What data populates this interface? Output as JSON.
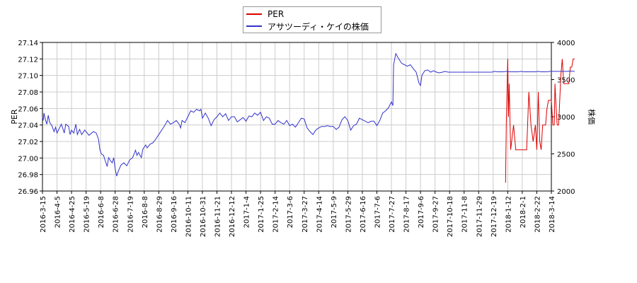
{
  "chart_data": {
    "type": "line",
    "xlabel": "",
    "ylabel": "PER",
    "y2label": "株価",
    "legend_position": "top",
    "grid": true,
    "ylim": [
      26.96,
      27.14
    ],
    "y2lim": [
      2000,
      4000
    ],
    "yticks": [
      "26.96",
      "26.98",
      "27.00",
      "27.02",
      "27.04",
      "27.06",
      "27.08",
      "27.10",
      "27.12",
      "27.14"
    ],
    "y2ticks": [
      "2000",
      "2500",
      "3000",
      "3500",
      "4000"
    ],
    "xticks": [
      "2016-3-15",
      "2016-4-5",
      "2016-4-25",
      "2016-5-19",
      "2016-6-8",
      "2016-6-28",
      "2016-7-19",
      "2016-8-8",
      "2016-8-29",
      "2016-9-16",
      "2016-10-11",
      "2016-10-31",
      "2016-11-21",
      "2016-12-12",
      "2017-1-4",
      "2017-1-25",
      "2017-2-14",
      "2017-3-6",
      "2017-3-27",
      "2017-4-14",
      "2017-5-9",
      "2017-5-29",
      "2017-6-16",
      "2017-7-6",
      "2017-7-27",
      "2017-8-17",
      "2017-9-6",
      "2017-9-27",
      "2017-10-18",
      "2017-11-8",
      "2017-11-29",
      "2017-12-19",
      "2018-1-12",
      "2018-2-1",
      "2018-2-22",
      "2018-3-14"
    ],
    "series": [
      {
        "name": "PER",
        "color": "#dd0000",
        "axis": "left",
        "points": [
          [
            31.85,
            26.97
          ],
          [
            31.9,
            27.04
          ],
          [
            32.0,
            27.12
          ],
          [
            32.05,
            27.05
          ],
          [
            32.1,
            27.09
          ],
          [
            32.2,
            27.01
          ],
          [
            32.4,
            27.04
          ],
          [
            32.55,
            27.01
          ],
          [
            32.7,
            27.01
          ],
          [
            33.0,
            27.01
          ],
          [
            33.3,
            27.01
          ],
          [
            33.45,
            27.08
          ],
          [
            33.6,
            27.04
          ],
          [
            33.75,
            27.02
          ],
          [
            33.9,
            27.04
          ],
          [
            34.0,
            27.01
          ],
          [
            34.1,
            27.08
          ],
          [
            34.2,
            27.02
          ],
          [
            34.3,
            27.01
          ],
          [
            34.4,
            27.04
          ],
          [
            34.6,
            27.04
          ],
          [
            34.7,
            27.06
          ],
          [
            34.8,
            27.07
          ],
          [
            35.0,
            27.07
          ],
          [
            35.1,
            27.04
          ],
          [
            35.2,
            27.04
          ],
          [
            35.25,
            27.09
          ],
          [
            35.3,
            27.07
          ],
          [
            35.4,
            27.04
          ],
          [
            35.5,
            27.04
          ],
          [
            35.65,
            27.1
          ],
          [
            35.75,
            27.12
          ],
          [
            35.85,
            27.09
          ],
          [
            35.95,
            27.09
          ],
          [
            36.2,
            27.09
          ],
          [
            36.3,
            27.11
          ],
          [
            36.4,
            27.11
          ],
          [
            36.5,
            27.12
          ],
          [
            36.6,
            27.12
          ]
        ]
      },
      {
        "name": "アサツーディ・ケイの株価",
        "color": "#3333cc",
        "axis": "right",
        "points": [
          [
            0,
            3000
          ],
          [
            0.05,
            2950
          ],
          [
            0.1,
            3050
          ],
          [
            0.2,
            2960
          ],
          [
            0.3,
            2900
          ],
          [
            0.4,
            3020
          ],
          [
            0.5,
            2920
          ],
          [
            0.65,
            2880
          ],
          [
            0.7,
            2850
          ],
          [
            0.8,
            2800
          ],
          [
            0.9,
            2860
          ],
          [
            1.0,
            2780
          ],
          [
            1.1,
            2820
          ],
          [
            1.3,
            2900
          ],
          [
            1.4,
            2840
          ],
          [
            1.5,
            2780
          ],
          [
            1.6,
            2900
          ],
          [
            1.8,
            2870
          ],
          [
            1.9,
            2760
          ],
          [
            2.0,
            2820
          ],
          [
            2.15,
            2780
          ],
          [
            2.3,
            2900
          ],
          [
            2.4,
            2760
          ],
          [
            2.55,
            2830
          ],
          [
            2.7,
            2760
          ],
          [
            2.9,
            2820
          ],
          [
            3.0,
            2800
          ],
          [
            3.2,
            2750
          ],
          [
            3.5,
            2800
          ],
          [
            3.7,
            2780
          ],
          [
            3.85,
            2700
          ],
          [
            3.95,
            2560
          ],
          [
            4.05,
            2500
          ],
          [
            4.2,
            2480
          ],
          [
            4.3,
            2420
          ],
          [
            4.45,
            2330
          ],
          [
            4.55,
            2450
          ],
          [
            4.7,
            2400
          ],
          [
            4.8,
            2380
          ],
          [
            4.9,
            2450
          ],
          [
            5.0,
            2300
          ],
          [
            5.1,
            2200
          ],
          [
            5.2,
            2260
          ],
          [
            5.4,
            2350
          ],
          [
            5.6,
            2380
          ],
          [
            5.8,
            2340
          ],
          [
            6.0,
            2420
          ],
          [
            6.2,
            2450
          ],
          [
            6.4,
            2550
          ],
          [
            6.5,
            2480
          ],
          [
            6.6,
            2520
          ],
          [
            6.8,
            2450
          ],
          [
            6.9,
            2560
          ],
          [
            7.1,
            2620
          ],
          [
            7.2,
            2580
          ],
          [
            7.4,
            2630
          ],
          [
            7.6,
            2650
          ],
          [
            7.8,
            2700
          ],
          [
            8.0,
            2760
          ],
          [
            8.2,
            2820
          ],
          [
            8.4,
            2880
          ],
          [
            8.6,
            2950
          ],
          [
            8.8,
            2900
          ],
          [
            9.0,
            2920
          ],
          [
            9.2,
            2950
          ],
          [
            9.4,
            2900
          ],
          [
            9.5,
            2850
          ],
          [
            9.6,
            2950
          ],
          [
            9.8,
            2920
          ],
          [
            10.0,
            3000
          ],
          [
            10.2,
            3080
          ],
          [
            10.4,
            3060
          ],
          [
            10.6,
            3100
          ],
          [
            10.8,
            3080
          ],
          [
            10.9,
            3100
          ],
          [
            11.0,
            2980
          ],
          [
            11.2,
            3050
          ],
          [
            11.4,
            2980
          ],
          [
            11.6,
            2880
          ],
          [
            11.8,
            2960
          ],
          [
            12.0,
            3000
          ],
          [
            12.2,
            3050
          ],
          [
            12.4,
            3000
          ],
          [
            12.6,
            3040
          ],
          [
            12.8,
            2950
          ],
          [
            13.0,
            3000
          ],
          [
            13.2,
            3000
          ],
          [
            13.4,
            2930
          ],
          [
            13.6,
            2960
          ],
          [
            13.8,
            2990
          ],
          [
            14.0,
            2940
          ],
          [
            14.2,
            3010
          ],
          [
            14.4,
            3000
          ],
          [
            14.6,
            3050
          ],
          [
            14.8,
            3020
          ],
          [
            15.0,
            3060
          ],
          [
            15.2,
            2950
          ],
          [
            15.4,
            3000
          ],
          [
            15.6,
            2980
          ],
          [
            15.8,
            2900
          ],
          [
            16.0,
            2900
          ],
          [
            16.2,
            2950
          ],
          [
            16.4,
            2920
          ],
          [
            16.6,
            2900
          ],
          [
            16.8,
            2950
          ],
          [
            17.0,
            2880
          ],
          [
            17.2,
            2900
          ],
          [
            17.4,
            2860
          ],
          [
            17.6,
            2920
          ],
          [
            17.8,
            2980
          ],
          [
            18.0,
            2970
          ],
          [
            18.2,
            2850
          ],
          [
            18.4,
            2800
          ],
          [
            18.6,
            2760
          ],
          [
            18.8,
            2820
          ],
          [
            19.0,
            2850
          ],
          [
            19.2,
            2870
          ],
          [
            19.4,
            2870
          ],
          [
            19.6,
            2880
          ],
          [
            19.8,
            2870
          ],
          [
            20.0,
            2870
          ],
          [
            20.2,
            2830
          ],
          [
            20.4,
            2860
          ],
          [
            20.6,
            2960
          ],
          [
            20.8,
            3000
          ],
          [
            21.0,
            2950
          ],
          [
            21.2,
            2820
          ],
          [
            21.4,
            2880
          ],
          [
            21.6,
            2900
          ],
          [
            21.8,
            2980
          ],
          [
            22.0,
            2960
          ],
          [
            22.2,
            2940
          ],
          [
            22.4,
            2920
          ],
          [
            22.6,
            2940
          ],
          [
            22.8,
            2940
          ],
          [
            23.0,
            2880
          ],
          [
            23.2,
            2950
          ],
          [
            23.4,
            3050
          ],
          [
            23.6,
            3080
          ],
          [
            23.8,
            3120
          ],
          [
            24.0,
            3200
          ],
          [
            24.1,
            3150
          ],
          [
            24.15,
            3700
          ],
          [
            24.3,
            3850
          ],
          [
            24.5,
            3780
          ],
          [
            24.7,
            3720
          ],
          [
            24.9,
            3700
          ],
          [
            25.1,
            3680
          ],
          [
            25.3,
            3700
          ],
          [
            25.5,
            3650
          ],
          [
            25.7,
            3600
          ],
          [
            25.9,
            3450
          ],
          [
            26.0,
            3420
          ],
          [
            26.1,
            3560
          ],
          [
            26.3,
            3620
          ],
          [
            26.5,
            3630
          ],
          [
            26.7,
            3600
          ],
          [
            26.9,
            3620
          ],
          [
            27.1,
            3600
          ],
          [
            27.3,
            3590
          ],
          [
            27.5,
            3600
          ],
          [
            27.7,
            3610
          ],
          [
            27.9,
            3600
          ],
          [
            28.1,
            3600
          ],
          [
            28.3,
            3600
          ],
          [
            28.5,
            3600
          ],
          [
            28.7,
            3600
          ],
          [
            28.9,
            3600
          ],
          [
            29.1,
            3600
          ],
          [
            29.3,
            3600
          ],
          [
            29.5,
            3600
          ],
          [
            29.7,
            3600
          ],
          [
            29.9,
            3600
          ],
          [
            30.1,
            3600
          ],
          [
            30.3,
            3600
          ],
          [
            30.5,
            3600
          ],
          [
            30.7,
            3600
          ],
          [
            30.9,
            3600
          ],
          [
            31.1,
            3610
          ],
          [
            31.3,
            3605
          ],
          [
            31.5,
            3605
          ],
          [
            31.7,
            3605
          ],
          [
            31.9,
            3610
          ],
          [
            32.1,
            3605
          ],
          [
            32.3,
            3605
          ],
          [
            32.5,
            3605
          ],
          [
            32.7,
            3605
          ],
          [
            32.9,
            3610
          ],
          [
            33.1,
            3605
          ],
          [
            33.3,
            3605
          ],
          [
            33.5,
            3605
          ],
          [
            33.7,
            3605
          ],
          [
            33.9,
            3605
          ],
          [
            34.1,
            3610
          ],
          [
            34.3,
            3605
          ],
          [
            34.5,
            3605
          ],
          [
            34.7,
            3605
          ],
          [
            34.9,
            3610
          ],
          [
            35.1,
            3610
          ],
          [
            35.3,
            3610
          ],
          [
            35.5,
            3610
          ],
          [
            35.7,
            3610
          ],
          [
            35.9,
            3610
          ],
          [
            36.1,
            3610
          ],
          [
            36.3,
            3615
          ],
          [
            36.6,
            3610
          ]
        ]
      }
    ]
  }
}
